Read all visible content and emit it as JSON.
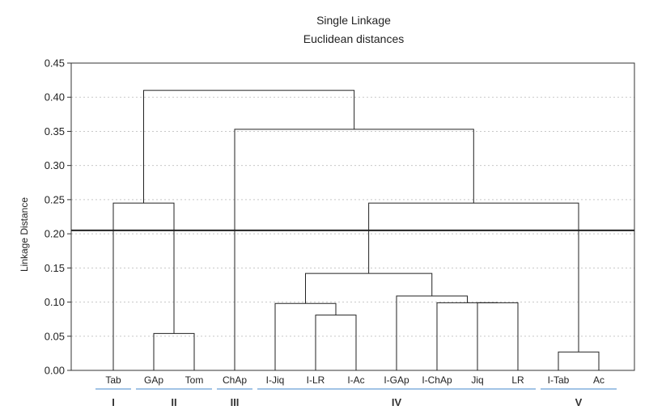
{
  "chart_data": {
    "type": "dendrogram",
    "title": "Single Linkage",
    "subtitle": "Euclidean distances",
    "ylabel": "Linkage Distance",
    "ylim": [
      0,
      0.45
    ],
    "yticks": [
      "0.00",
      "0.05",
      "0.10",
      "0.15",
      "0.20",
      "0.25",
      "0.30",
      "0.35",
      "0.40",
      "0.45"
    ],
    "grid": true,
    "cut_line": 0.205,
    "leaves": [
      "Tab",
      "GAp",
      "Tom",
      "ChAp",
      "I-Jiq",
      "I-LR",
      "I-Ac",
      "I-GAp",
      "I-ChAp",
      "Jiq",
      "LR",
      "I-Tab",
      "Ac"
    ],
    "merges": [
      {
        "a": 6,
        "b": 5,
        "h": 0.081
      },
      {
        "a": 4,
        "b": 13,
        "h": 0.098
      },
      {
        "a": 9,
        "b": 10,
        "h": 0.099
      },
      {
        "a": 8,
        "b": 15,
        "h": 0.099
      },
      {
        "a": 7,
        "b": 16,
        "h": 0.109
      },
      {
        "a": 14,
        "b": 17,
        "h": 0.142
      },
      {
        "a": 11,
        "b": 12,
        "h": 0.027
      },
      {
        "a": 18,
        "b": 19,
        "h": 0.245
      },
      {
        "a": 1,
        "b": 2,
        "h": 0.054
      },
      {
        "a": 0,
        "b": 21,
        "h": 0.245
      },
      {
        "a": 3,
        "b": 20,
        "h": 0.353
      },
      {
        "a": 22,
        "b": 23,
        "h": 0.41
      }
    ],
    "groups": [
      {
        "label": "I",
        "leaves": [
          0
        ]
      },
      {
        "label": "II",
        "leaves": [
          1,
          2
        ]
      },
      {
        "label": "III",
        "leaves": [
          3
        ]
      },
      {
        "label": "IV",
        "leaves": [
          4,
          5,
          6,
          7,
          8,
          9,
          10
        ]
      },
      {
        "label": "V",
        "leaves": [
          11,
          12
        ]
      }
    ]
  }
}
